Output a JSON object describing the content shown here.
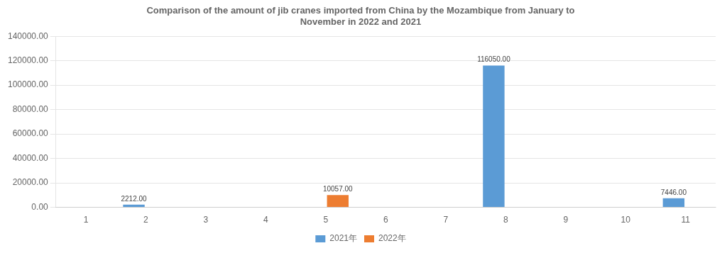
{
  "chart_data": {
    "type": "bar",
    "title": "Comparison of the amount of jib cranes imported from China by the Mozambique from January to\nNovember in 2022 and 2021",
    "categories": [
      "1",
      "2",
      "3",
      "4",
      "5",
      "6",
      "7",
      "8",
      "9",
      "10",
      "11"
    ],
    "series": [
      {
        "name": "2021年",
        "color": "#5B9BD5",
        "values": [
          0,
          2212.0,
          0,
          0,
          0,
          0,
          0,
          116050.0,
          0,
          0,
          7446.0
        ],
        "value_labels": [
          null,
          "2212.00",
          null,
          null,
          null,
          null,
          null,
          "116050.00",
          null,
          null,
          "7446.00"
        ]
      },
      {
        "name": "2022年",
        "color": "#ED7D31",
        "values": [
          0,
          0,
          0,
          0,
          10057.0,
          0,
          0,
          0,
          0,
          0,
          0
        ],
        "value_labels": [
          null,
          null,
          null,
          null,
          "10057.00",
          null,
          null,
          null,
          null,
          null,
          null
        ]
      }
    ],
    "ylim": [
      0,
      140000
    ],
    "yticks": [
      {
        "value": 0,
        "label": "0.00"
      },
      {
        "value": 20000,
        "label": "20000.00"
      },
      {
        "value": 40000,
        "label": "40000.00"
      },
      {
        "value": 60000,
        "label": "60000.00"
      },
      {
        "value": 80000,
        "label": "80000.00"
      },
      {
        "value": 100000,
        "label": "100000.00"
      },
      {
        "value": 120000,
        "label": "120000.00"
      },
      {
        "value": 140000,
        "label": "140000.00"
      }
    ],
    "grid": true,
    "legend": "bottom",
    "data_labels": true
  }
}
